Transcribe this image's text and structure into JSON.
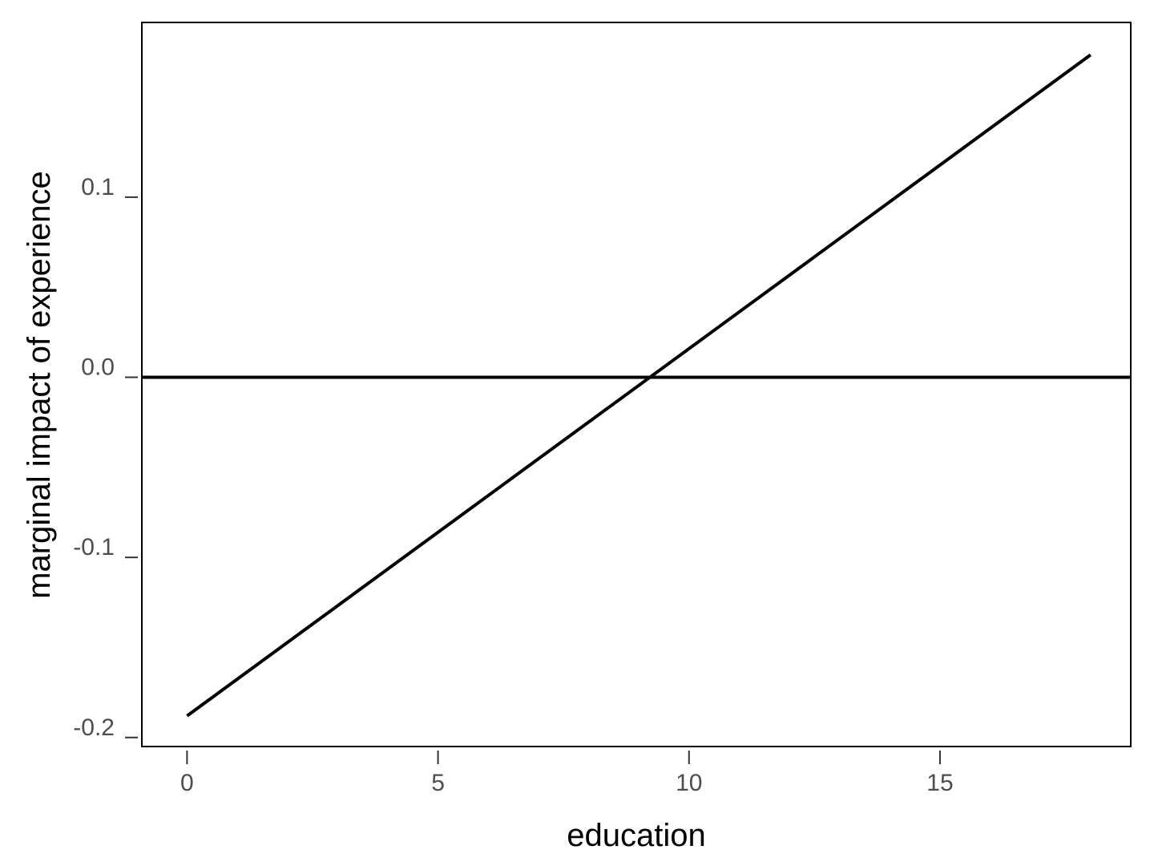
{
  "chart_data": {
    "type": "line",
    "title": "",
    "xlabel": "education",
    "ylabel": "marginal impact of experience",
    "xlim": [
      -0.9,
      18.8
    ],
    "ylim": [
      -0.205,
      0.197
    ],
    "xticks": [
      0,
      5,
      10,
      15
    ],
    "xtick_labels": [
      "0",
      "5",
      "10",
      "15"
    ],
    "yticks": [
      -0.2,
      -0.1,
      0.0,
      0.1
    ],
    "ytick_labels": [
      "-0.2",
      "-0.1",
      "0.0",
      "0.1"
    ],
    "grid": false,
    "legend": "none",
    "series": [
      {
        "x": [
          0,
          18
        ],
        "y": [
          -0.188,
          0.179
        ],
        "color": "#000000"
      }
    ],
    "reference_lines": [
      {
        "orientation": "horizontal",
        "y": 0,
        "color": "#000000"
      }
    ]
  }
}
